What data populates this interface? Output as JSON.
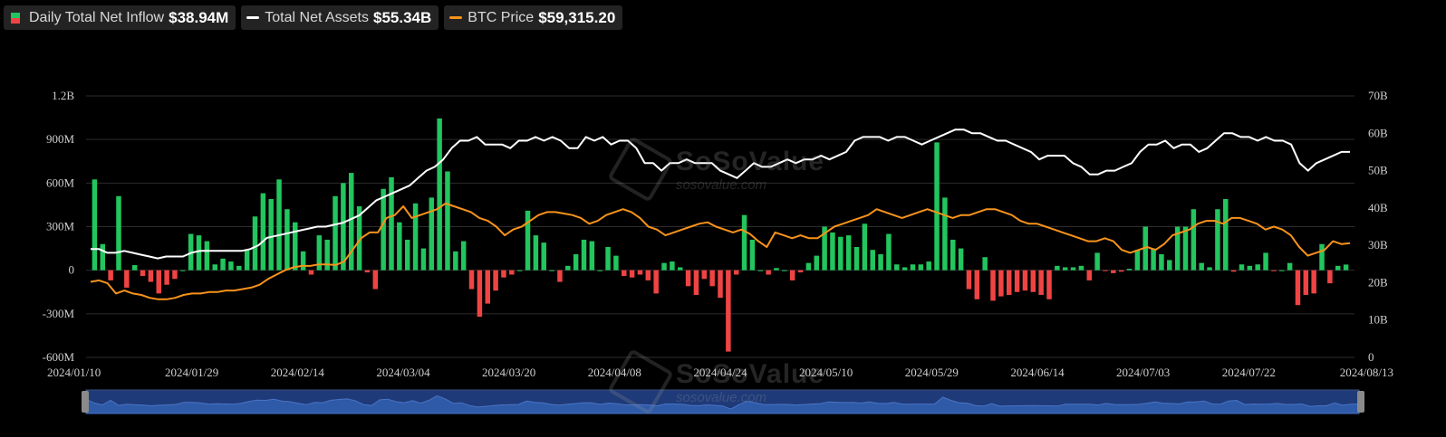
{
  "legend": [
    {
      "label": "Daily Total Net Inflow",
      "value": "$38.94M",
      "type": "bar",
      "colors": [
        "#22c55e",
        "#ef4444"
      ]
    },
    {
      "label": "Total Net Assets",
      "value": "$55.34B",
      "type": "line",
      "color": "#ffffff"
    },
    {
      "label": "BTC Price",
      "value": "$59,315.20",
      "type": "line",
      "color": "#f7931a"
    }
  ],
  "watermark": {
    "brand": "SoSoValue",
    "site": "sosovalue.com"
  },
  "chart_data": {
    "type": "bar",
    "x_tick_labels": [
      "2024/01/10",
      "2024/01/29",
      "2024/02/14",
      "2024/03/04",
      "2024/03/20",
      "2024/04/08",
      "2024/04/24",
      "2024/05/10",
      "2024/05/29",
      "2024/06/14",
      "2024/07/03",
      "2024/07/22",
      "2024/08/13"
    ],
    "y_left": {
      "ticks": [
        "1.2B",
        "900M",
        "600M",
        "300M",
        "0",
        "-300M",
        "-600M"
      ],
      "range": [
        -600,
        1200
      ],
      "unit": "M"
    },
    "y_right": {
      "ticks": [
        "70B",
        "60B",
        "50B",
        "40B",
        "30B",
        "20B",
        "10B",
        "0"
      ],
      "range": [
        0,
        70
      ],
      "unit": "B"
    },
    "grid": true,
    "colors": {
      "positive": "#22c55e",
      "negative": "#ef4444",
      "assets": "#ffffff",
      "price": "#f7931a"
    },
    "series": [
      {
        "name": "Daily Total Net Inflow",
        "values": [
          625,
          180,
          -70,
          510,
          -120,
          35,
          -40,
          -80,
          -160,
          -100,
          -60,
          0,
          250,
          240,
          200,
          40,
          80,
          60,
          30,
          140,
          370,
          530,
          490,
          625,
          420,
          330,
          130,
          -30,
          240,
          210,
          510,
          600,
          670,
          440,
          -15,
          -130,
          560,
          640,
          330,
          210,
          460,
          150,
          500,
          1045,
          680,
          130,
          200,
          -130,
          -320,
          -230,
          -140,
          -50,
          -30,
          0,
          410,
          240,
          190,
          0,
          -80,
          30,
          110,
          210,
          200,
          0,
          160,
          100,
          -40,
          -50,
          -30,
          -70,
          -160,
          50,
          60,
          20,
          -110,
          -170,
          -60,
          -110,
          -190,
          -560,
          -30,
          380,
          210,
          0,
          -30,
          15,
          0,
          -70,
          -15,
          50,
          100,
          300,
          260,
          230,
          240,
          160,
          320,
          140,
          110,
          250,
          40,
          20,
          40,
          40,
          60,
          880,
          500,
          210,
          150,
          -130,
          -200,
          90,
          -210,
          -180,
          -170,
          -150,
          -140,
          -150,
          -170,
          -200,
          30,
          20,
          20,
          30,
          -70,
          120,
          -5,
          -20,
          -10,
          10,
          140,
          300,
          150,
          110,
          70,
          300,
          300,
          420,
          50,
          20,
          420,
          490,
          -10,
          40,
          30,
          40,
          120,
          -5,
          0,
          50,
          -240,
          -170,
          -160,
          180,
          -90,
          30,
          39
        ]
      },
      {
        "name": "Total Net Assets",
        "values": [
          29,
          29,
          28,
          28,
          28.5,
          28,
          27.5,
          27,
          26.5,
          27,
          27,
          27,
          28,
          28.5,
          28.5,
          28.5,
          28.5,
          28.5,
          28.5,
          29,
          30,
          32,
          32.5,
          33,
          33.5,
          34,
          34.5,
          35,
          35,
          35.5,
          36,
          37,
          38,
          40,
          42,
          43,
          44,
          45,
          46,
          48,
          50,
          51,
          53,
          56,
          58,
          58,
          59,
          57,
          57,
          57,
          56,
          58,
          58,
          59,
          58,
          59,
          58,
          56,
          56,
          59,
          58,
          59,
          57,
          58,
          58,
          56,
          52,
          52,
          50,
          52,
          52,
          53,
          52,
          52,
          52,
          50,
          49,
          48,
          50,
          52,
          51,
          51,
          52,
          53,
          52,
          53,
          53,
          54,
          53,
          54,
          55,
          58,
          59,
          59,
          59,
          58,
          59,
          59,
          58,
          57,
          58,
          59,
          60,
          61,
          61,
          60,
          60,
          59,
          58,
          58,
          57,
          56,
          55,
          53,
          54,
          54,
          54,
          52,
          51,
          49,
          49,
          50,
          50,
          51,
          52,
          55,
          57,
          57,
          58,
          56,
          57,
          57,
          55,
          56,
          58,
          60,
          60,
          59,
          59,
          58,
          59,
          58,
          58,
          57,
          52,
          50,
          52,
          53,
          54,
          55,
          55
        ],
        "unit": "B"
      },
      {
        "name": "BTC Price",
        "values": [
          46000,
          46500,
          45500,
          42000,
          43000,
          42000,
          41500,
          40500,
          40000,
          40000,
          40500,
          41500,
          42000,
          42000,
          42500,
          42500,
          43000,
          43000,
          43500,
          44000,
          45000,
          47000,
          48500,
          50000,
          51000,
          51500,
          51500,
          52000,
          52000,
          51800,
          53000,
          57000,
          61000,
          63000,
          63000,
          68000,
          69000,
          72000,
          68000,
          69000,
          70000,
          71000,
          73000,
          72000,
          71000,
          70000,
          68000,
          67000,
          65000,
          62000,
          64000,
          65000,
          67000,
          69000,
          70000,
          70000,
          69500,
          69000,
          68000,
          66000,
          67000,
          69000,
          70000,
          71000,
          70000,
          68000,
          65000,
          64000,
          62000,
          63000,
          64000,
          65000,
          66000,
          66500,
          65000,
          64000,
          63000,
          64000,
          62500,
          60000,
          58000,
          63000,
          62000,
          61000,
          62000,
          61000,
          61000,
          63000,
          65000,
          66000,
          67000,
          68000,
          69000,
          71000,
          70000,
          69000,
          68000,
          69000,
          70000,
          71000,
          70000,
          69000,
          68000,
          69000,
          69000,
          70000,
          71000,
          71000,
          70000,
          69000,
          67000,
          66000,
          66000,
          65000,
          64000,
          63000,
          62000,
          61000,
          60000,
          60000,
          61000,
          60000,
          57000,
          56000,
          57000,
          58000,
          57000,
          59000,
          62000,
          63000,
          64000,
          66000,
          67000,
          67000,
          66000,
          68000,
          68000,
          67000,
          66000,
          64000,
          65000,
          64000,
          62000,
          58000,
          55000,
          56000,
          57000,
          60000,
          59000,
          59315
        ],
        "unit": "USD"
      }
    ]
  }
}
